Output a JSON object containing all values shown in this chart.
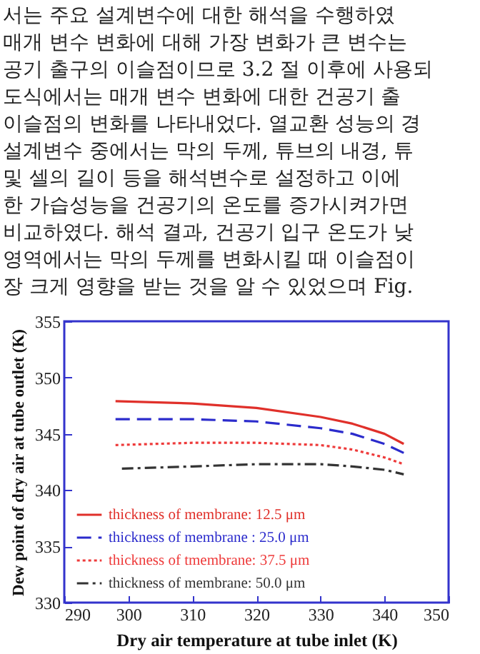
{
  "chart_data": {
    "type": "line",
    "xlabel": "Dry air temperature at tube inlet (K)",
    "ylabel": "Dew point of dry air at tube outlet (K)",
    "xlim": [
      290,
      350
    ],
    "xticks": [
      290,
      300,
      310,
      320,
      330,
      340,
      350
    ],
    "ylim": [
      330,
      355
    ],
    "yticks": [
      330,
      335,
      340,
      345,
      350,
      355
    ],
    "grid": false,
    "legend": "bottom left",
    "marker": "none",
    "annotations": [
      "서는 주요 설계변수에 대한 해석을 수행하였",
      "매개 변수 변화에 대해 가장 변화가 큰 변수는",
      "공기 출구의 이슬점이므로 3.2 절 이후에 사용되",
      "도식에서는 매개 변수 변화에 대한 건공기 출",
      "이슬점의 변화를 나타내었다. 열교환 성능의 경",
      "설계변수 중에서는 막의 두께, 튜브의 내경, 튜",
      "및 셀의 길이 등을 해석변수로 설정하고 이에",
      "한 가습성능을 건공기의 온도를 증가시켜가면",
      "비교하였다. 해석 결과, 건공기 입구 온도가 낮",
      "영역에서는 막의 두께를 변화시킬 때 이슬점이",
      "장 크게 영향을 받는 것을 알 수 있었으며 Fig."
    ],
    "series": [
      {
        "name": "thickness of membrane: 12.5 μm",
        "color": "#e0302a",
        "line_style": "solid",
        "x": [
          298,
          310,
          320,
          330,
          335,
          340,
          343
        ],
        "values": [
          347.9,
          347.7,
          347.3,
          346.5,
          345.9,
          345.0,
          344.1
        ]
      },
      {
        "name": "thickness of membrane : 25.0 μm",
        "color": "#2b2bcc",
        "line_style": "dashed",
        "x": [
          298,
          310,
          320,
          330,
          335,
          340,
          343
        ],
        "values": [
          346.3,
          346.3,
          346.1,
          345.5,
          345.0,
          344.1,
          343.3
        ]
      },
      {
        "name": "thickness of tmembrane: 37.5 μm",
        "color": "#ee3a3a",
        "line_style": "dotted",
        "x": [
          298,
          310,
          320,
          330,
          335,
          340,
          343
        ],
        "values": [
          344.0,
          344.2,
          344.2,
          344.0,
          343.6,
          342.9,
          342.3
        ]
      },
      {
        "name": "thickness of membrane: 50.0 μm",
        "color": "#333333",
        "line_style": "dashdot",
        "x": [
          299,
          310,
          320,
          330,
          335,
          340,
          343
        ],
        "values": [
          341.9,
          342.1,
          342.3,
          342.3,
          342.1,
          341.8,
          341.4
        ]
      }
    ]
  }
}
